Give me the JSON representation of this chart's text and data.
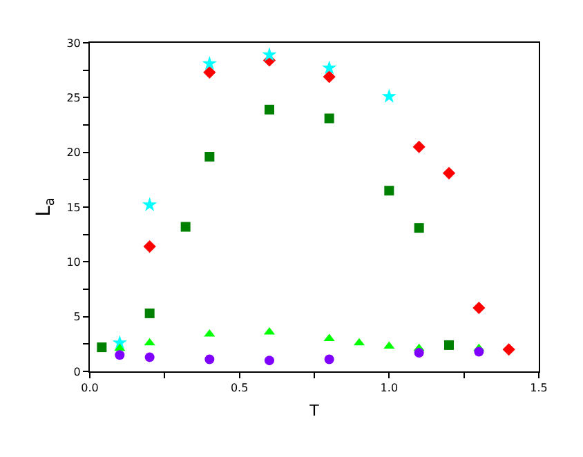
{
  "chart_data": {
    "type": "scatter",
    "xlabel": "T",
    "ylabel": "L$_{a}$",
    "xlim": [
      0,
      1.5
    ],
    "xticks": [
      {
        "value": 0,
        "label": "0.0"
      },
      {
        "value": 0.25,
        "label": null
      },
      {
        "value": 0.5,
        "label": "0.5"
      },
      {
        "value": 0.75,
        "label": null
      },
      {
        "value": 1,
        "label": "1.0"
      },
      {
        "value": 1.25,
        "label": null
      },
      {
        "value": 1.5,
        "label": "1.5"
      }
    ],
    "ylim": [
      0,
      30
    ],
    "yticks": [
      0,
      {
        "value": 2.5,
        "label": null
      },
      5,
      {
        "value": 7.5,
        "label": null
      },
      10,
      {
        "value": 12.5,
        "label": null
      },
      15,
      {
        "value": 17.5,
        "label": null
      },
      20,
      {
        "value": 22.5,
        "label": null
      },
      25,
      {
        "value": 27.5,
        "label": null
      },
      30
    ],
    "series": [
      {
        "color": "#ff0000",
        "marker": "diamond",
        "x": [
          0.2,
          0.4,
          0.6,
          0.8,
          1.1,
          1.2,
          1.3,
          1.4
        ],
        "values": [
          11.4,
          27.3,
          28.4,
          26.9,
          20.5,
          18.1,
          5.8,
          2.0
        ]
      },
      {
        "color": "#00ffff",
        "marker": "star",
        "x": [
          0.1,
          0.2,
          0.4,
          0.6,
          0.8,
          1.0
        ],
        "values": [
          2.6,
          15.2,
          28.1,
          28.9,
          27.7,
          25.1
        ]
      },
      {
        "color": "#008000",
        "marker": "square",
        "x": [
          0.04,
          0.2,
          0.32,
          0.4,
          0.6,
          0.8,
          1.0,
          1.1,
          1.2
        ],
        "values": [
          2.2,
          5.3,
          13.2,
          19.6,
          23.9,
          23.1,
          16.5,
          13.1,
          2.4
        ]
      },
      {
        "color": "#00ff00",
        "marker": "triangle",
        "x": [
          0.1,
          0.2,
          0.4,
          0.6,
          0.8,
          0.9,
          1.0,
          1.1,
          1.3
        ],
        "values": [
          2.1,
          2.6,
          3.4,
          3.6,
          3.0,
          2.6,
          2.3,
          2.1,
          2.1
        ]
      },
      {
        "color": "#8000ff",
        "marker": "circle",
        "x": [
          0.1,
          0.2,
          0.4,
          0.6,
          0.8,
          1.1,
          1.3
        ],
        "values": [
          1.5,
          1.3,
          1.1,
          1.0,
          1.1,
          1.7,
          1.8
        ]
      }
    ]
  }
}
